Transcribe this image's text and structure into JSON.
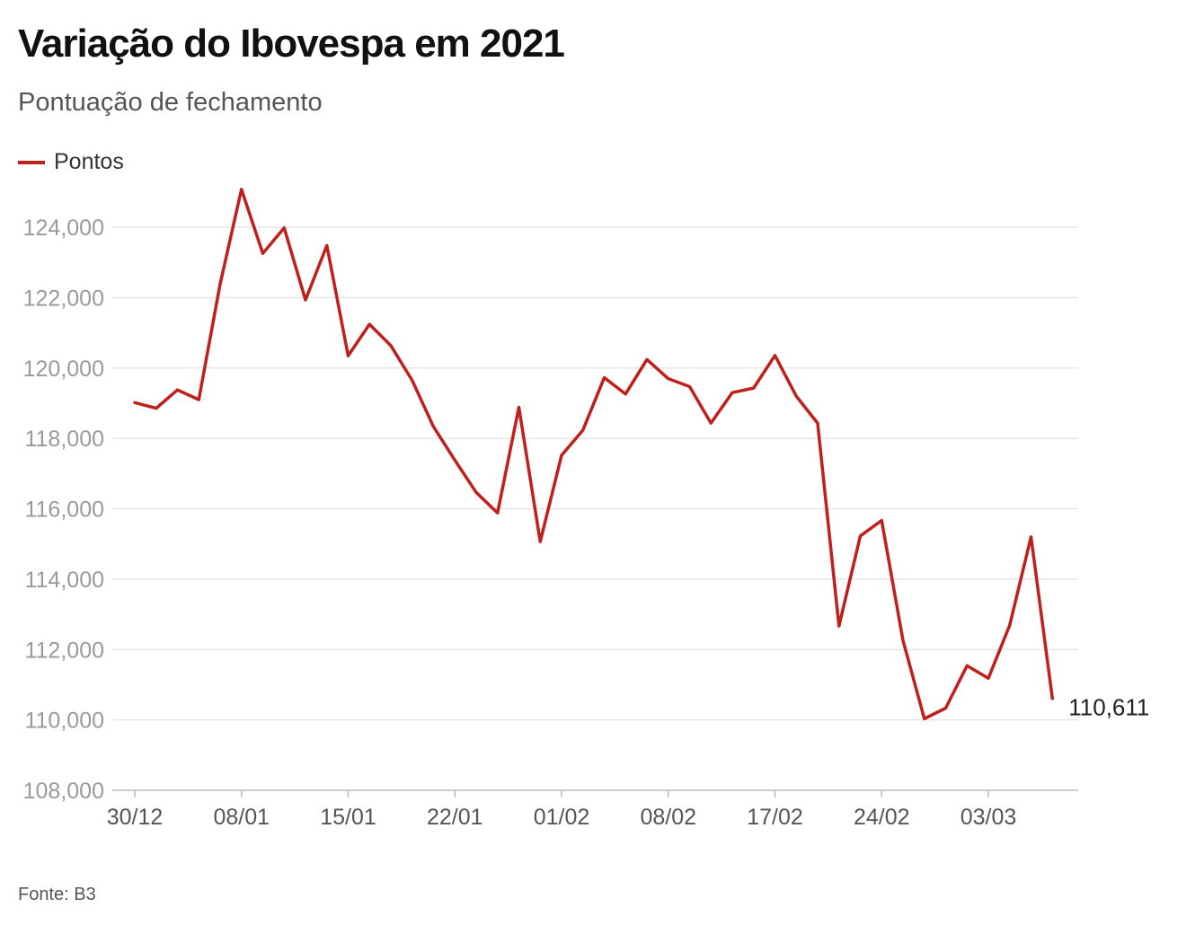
{
  "chart_data": {
    "type": "line",
    "title": "Variação do Ibovespa em 2021",
    "subtitle": "Pontuação de fechamento",
    "source": "Fonte: B3",
    "xlabel": "",
    "ylabel": "",
    "ylim": [
      108000,
      125000
    ],
    "yticks": [
      108000,
      110000,
      112000,
      114000,
      116000,
      118000,
      120000,
      122000,
      124000
    ],
    "ytick_labels": [
      "108,000",
      "110,000",
      "112,000",
      "114,000",
      "116,000",
      "118,000",
      "120,000",
      "122,000",
      "124,000"
    ],
    "xtick_labels": [
      "30/12",
      "08/01",
      "15/01",
      "22/01",
      "01/02",
      "08/02",
      "17/02",
      "24/02",
      "03/03"
    ],
    "xtick_indices": [
      0,
      5,
      10,
      15,
      20,
      25,
      30,
      35,
      40
    ],
    "grid": true,
    "legend_position": "top-left",
    "line_color": "#c0201b",
    "series": [
      {
        "name": "Pontos",
        "values": [
          119017,
          118855,
          119376,
          119100,
          122386,
          125077,
          123255,
          123981,
          121933,
          123480,
          120348,
          121242,
          120636,
          119646,
          118329,
          117380,
          116464,
          115882,
          118883,
          115068,
          117517,
          118234,
          119725,
          119261,
          120240,
          119696,
          119471,
          118433,
          119300,
          119429,
          120356,
          119199,
          118430,
          112668,
          115227,
          115668,
          112256,
          110035,
          110335,
          111540,
          111184,
          112690,
          115202,
          110611
        ]
      }
    ],
    "end_label": "110,611"
  }
}
